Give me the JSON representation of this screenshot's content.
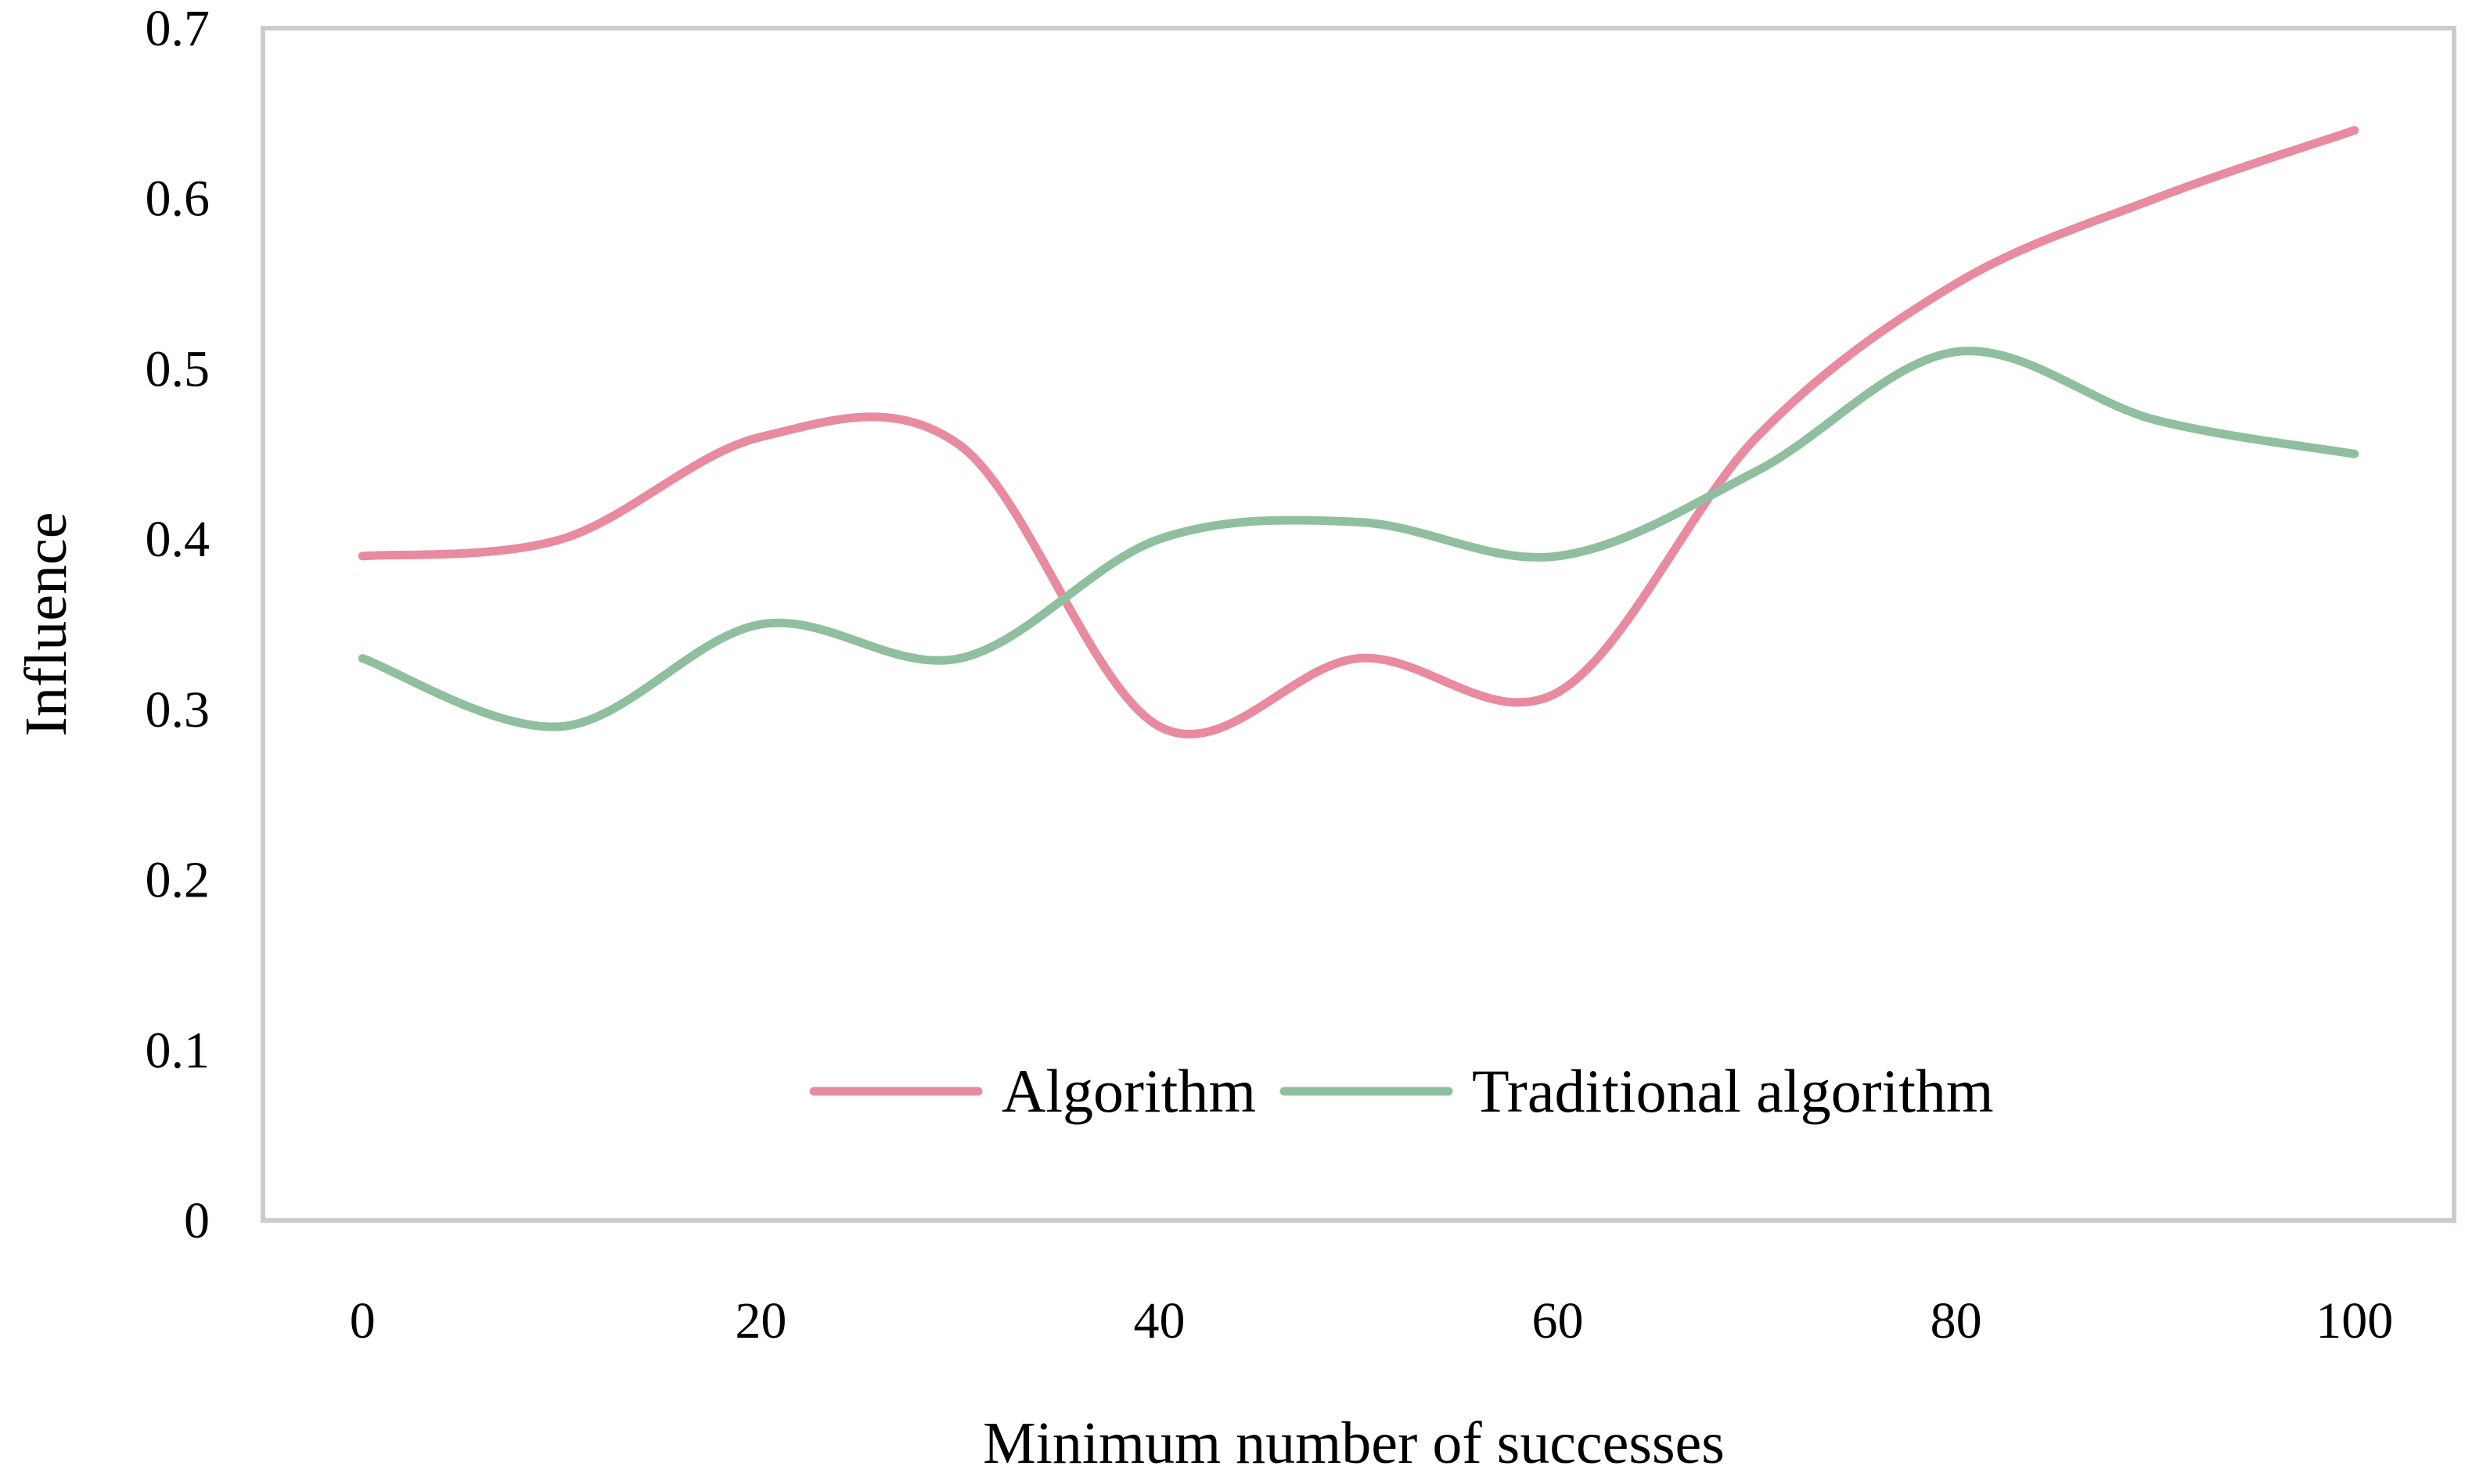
{
  "chart_data": {
    "type": "line",
    "title": "",
    "xlabel": "Minimum number of successes",
    "ylabel": "Influence",
    "xlim": [
      -5,
      105
    ],
    "ylim": [
      0,
      0.7
    ],
    "x_ticks": [
      "0",
      "20",
      "40",
      "60",
      "80",
      "100"
    ],
    "x_tick_values": [
      0,
      20,
      40,
      60,
      80,
      100
    ],
    "y_ticks": [
      "0",
      "0.1",
      "0.2",
      "0.3",
      "0.4",
      "0.5",
      "0.6",
      "0.7"
    ],
    "y_tick_values": [
      0,
      0.1,
      0.2,
      0.3,
      0.4,
      0.5,
      0.6,
      0.7
    ],
    "grid": false,
    "legend_position": "bottom-center",
    "smooth": true,
    "x": [
      0,
      10,
      20,
      30,
      40,
      50,
      60,
      70,
      80,
      90,
      100
    ],
    "series": [
      {
        "name": "Algorithm",
        "color": "#e88aa0",
        "values": [
          0.39,
          0.4,
          0.46,
          0.455,
          0.29,
          0.33,
          0.31,
          0.46,
          0.55,
          0.6,
          0.64
        ]
      },
      {
        "name": "Traditional algorithm",
        "color": "#8fbf9f",
        "values": [
          0.33,
          0.29,
          0.35,
          0.33,
          0.4,
          0.41,
          0.39,
          0.44,
          0.51,
          0.47,
          0.45
        ]
      }
    ]
  }
}
